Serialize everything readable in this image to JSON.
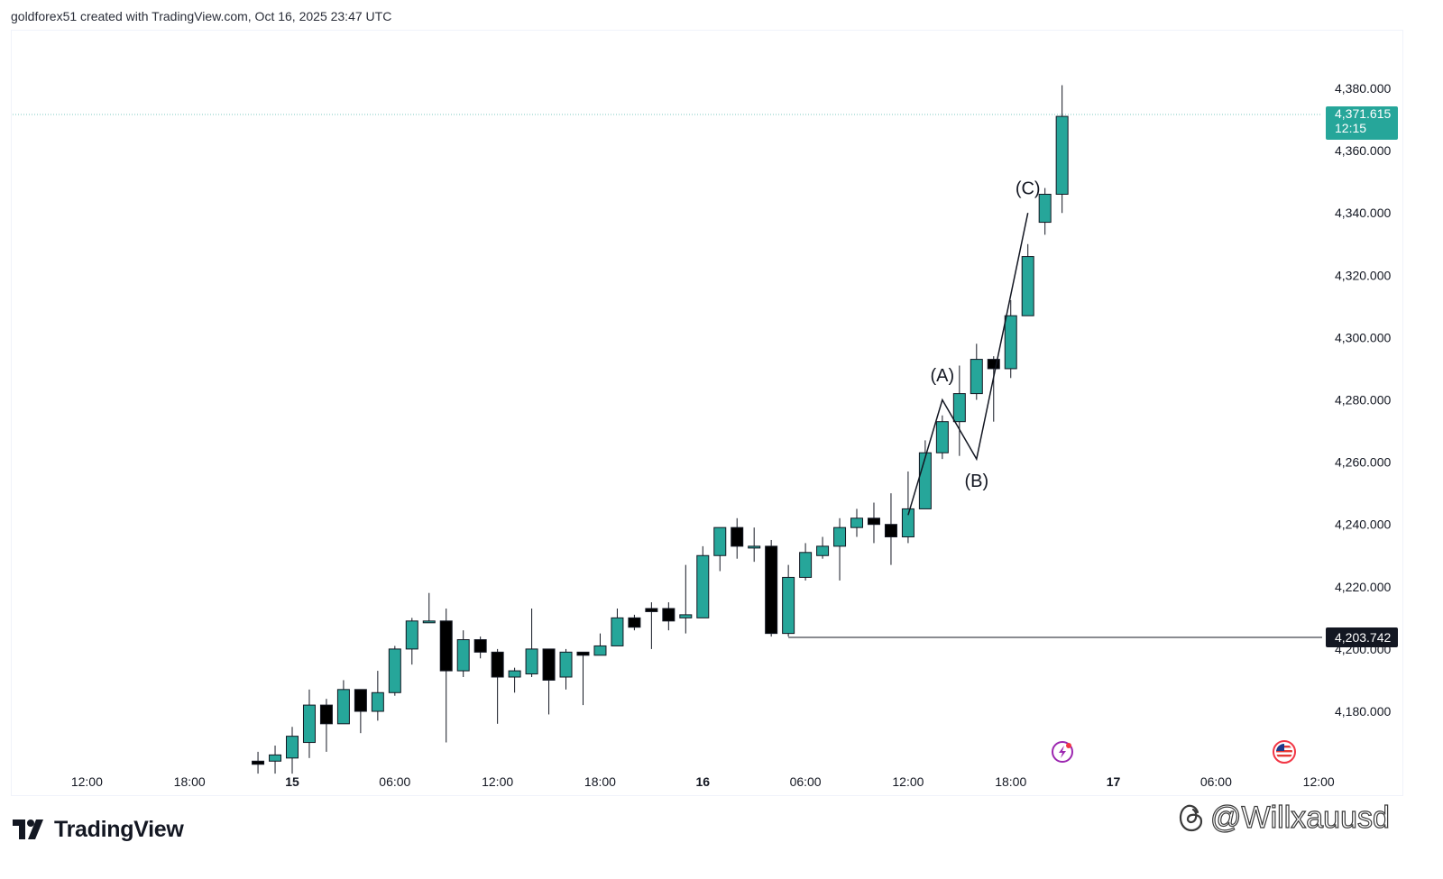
{
  "header": {
    "credit": "goldforex51 created with TradingView.com, Oct 16, 2025 23:47 UTC"
  },
  "footer": {
    "logo_text": "TradingView",
    "watermark": "@Willxauusd"
  },
  "icons": {
    "logo": "tradingview-logo-icon",
    "events": [
      "lightning-event-icon",
      "us-flag-event-icon"
    ],
    "watermark": "threads-icon"
  },
  "colors": {
    "up": "#26a69a",
    "down": "#000000",
    "price_line": "#26a69a",
    "level_line": "#131722"
  },
  "chart_data": {
    "type": "candlestick",
    "symbol_timeframe_minutes": 60,
    "y_axis": {
      "ticks": [
        4180,
        4200,
        4220,
        4240,
        4260,
        4280,
        4300,
        4320,
        4340,
        4360,
        4380
      ],
      "tick_labels": [
        "4,180.000",
        "4,200.000",
        "4,220.000",
        "4,240.000",
        "4,260.000",
        "4,280.000",
        "4,300.000",
        "4,320.000",
        "4,340.000",
        "4,360.000",
        "4,380.000"
      ]
    },
    "x_axis": {
      "ticks": [
        {
          "t": "2025-10-14 12:00",
          "label": "12:00",
          "bold": false
        },
        {
          "t": "2025-10-14 18:00",
          "label": "18:00",
          "bold": false
        },
        {
          "t": "2025-10-15 00:00",
          "label": "15",
          "bold": true
        },
        {
          "t": "2025-10-15 06:00",
          "label": "06:00",
          "bold": false
        },
        {
          "t": "2025-10-15 12:00",
          "label": "12:00",
          "bold": false
        },
        {
          "t": "2025-10-15 18:00",
          "label": "18:00",
          "bold": false
        },
        {
          "t": "2025-10-16 00:00",
          "label": "16",
          "bold": true
        },
        {
          "t": "2025-10-16 06:00",
          "label": "06:00",
          "bold": false
        },
        {
          "t": "2025-10-16 12:00",
          "label": "12:00",
          "bold": false
        },
        {
          "t": "2025-10-16 18:00",
          "label": "18:00",
          "bold": false
        },
        {
          "t": "2025-10-17 00:00",
          "label": "17",
          "bold": true
        },
        {
          "t": "2025-10-17 06:00",
          "label": "06:00",
          "bold": false
        },
        {
          "t": "2025-10-17 12:00",
          "label": "12:00",
          "bold": false
        }
      ]
    },
    "candles": [
      {
        "t": "2025-10-14 22:00",
        "o": 4164,
        "h": 4167,
        "l": 4160,
        "c": 4163
      },
      {
        "t": "2025-10-14 23:00",
        "o": 4164,
        "h": 4169,
        "l": 4160,
        "c": 4166
      },
      {
        "t": "2025-10-15 00:00",
        "o": 4165,
        "h": 4175,
        "l": 4160,
        "c": 4172
      },
      {
        "t": "2025-10-15 01:00",
        "o": 4170,
        "h": 4187,
        "l": 4165,
        "c": 4182
      },
      {
        "t": "2025-10-15 02:00",
        "o": 4182,
        "h": 4184,
        "l": 4167,
        "c": 4176
      },
      {
        "t": "2025-10-15 03:00",
        "o": 4176,
        "h": 4190,
        "l": 4176,
        "c": 4187
      },
      {
        "t": "2025-10-15 04:00",
        "o": 4187,
        "h": 4187,
        "l": 4173,
        "c": 4180
      },
      {
        "t": "2025-10-15 05:00",
        "o": 4180,
        "h": 4193,
        "l": 4177,
        "c": 4186
      },
      {
        "t": "2025-10-15 06:00",
        "o": 4186,
        "h": 4201,
        "l": 4185,
        "c": 4200
      },
      {
        "t": "2025-10-15 07:00",
        "o": 4200,
        "h": 4210,
        "l": 4195,
        "c": 4209
      },
      {
        "t": "2025-10-15 08:00",
        "o": 4209,
        "h": 4218,
        "l": 4209,
        "c": 4209
      },
      {
        "t": "2025-10-15 09:00",
        "o": 4209,
        "h": 4213,
        "l": 4170,
        "c": 4193
      },
      {
        "t": "2025-10-15 10:00",
        "o": 4193,
        "h": 4206,
        "l": 4191,
        "c": 4203
      },
      {
        "t": "2025-10-15 11:00",
        "o": 4203,
        "h": 4204,
        "l": 4197,
        "c": 4199
      },
      {
        "t": "2025-10-15 12:00",
        "o": 4199,
        "h": 4200,
        "l": 4176,
        "c": 4191
      },
      {
        "t": "2025-10-15 13:00",
        "o": 4191,
        "h": 4194,
        "l": 4186,
        "c": 4193
      },
      {
        "t": "2025-10-15 14:00",
        "o": 4192,
        "h": 4213,
        "l": 4191,
        "c": 4200
      },
      {
        "t": "2025-10-15 15:00",
        "o": 4200,
        "h": 4200,
        "l": 4179,
        "c": 4190
      },
      {
        "t": "2025-10-15 16:00",
        "o": 4191,
        "h": 4200,
        "l": 4187,
        "c": 4199
      },
      {
        "t": "2025-10-15 17:00",
        "o": 4199,
        "h": 4199,
        "l": 4182,
        "c": 4198
      },
      {
        "t": "2025-10-15 18:00",
        "o": 4198,
        "h": 4205,
        "l": 4198,
        "c": 4201
      },
      {
        "t": "2025-10-15 19:00",
        "o": 4201,
        "h": 4213,
        "l": 4201,
        "c": 4210
      },
      {
        "t": "2025-10-15 20:00",
        "o": 4210,
        "h": 4211,
        "l": 4206,
        "c": 4207
      },
      {
        "t": "2025-10-15 21:00",
        "o": 4213,
        "h": 4215,
        "l": 4200,
        "c": 4212
      },
      {
        "t": "2025-10-15 22:00",
        "o": 4213,
        "h": 4215,
        "l": 4206,
        "c": 4209
      },
      {
        "t": "2025-10-15 23:00",
        "o": 4210,
        "h": 4227,
        "l": 4205,
        "c": 4211
      },
      {
        "t": "2025-10-16 00:00",
        "o": 4210,
        "h": 4233,
        "l": 4210,
        "c": 4230
      },
      {
        "t": "2025-10-16 01:00",
        "o": 4230,
        "h": 4239,
        "l": 4225,
        "c": 4239
      },
      {
        "t": "2025-10-16 02:00",
        "o": 4239,
        "h": 4242,
        "l": 4229,
        "c": 4233
      },
      {
        "t": "2025-10-16 03:00",
        "o": 4233,
        "h": 4239,
        "l": 4228,
        "c": 4233
      },
      {
        "t": "2025-10-16 04:00",
        "o": 4233,
        "h": 4235,
        "l": 4204,
        "c": 4205
      },
      {
        "t": "2025-10-16 05:00",
        "o": 4205,
        "h": 4227,
        "l": 4204,
        "c": 4223
      },
      {
        "t": "2025-10-16 06:00",
        "o": 4223,
        "h": 4234,
        "l": 4222,
        "c": 4231
      },
      {
        "t": "2025-10-16 07:00",
        "o": 4230,
        "h": 4236,
        "l": 4229,
        "c": 4233
      },
      {
        "t": "2025-10-16 08:00",
        "o": 4233,
        "h": 4242,
        "l": 4222,
        "c": 4239
      },
      {
        "t": "2025-10-16 09:00",
        "o": 4239,
        "h": 4245,
        "l": 4236,
        "c": 4242
      },
      {
        "t": "2025-10-16 10:00",
        "o": 4242,
        "h": 4247,
        "l": 4234,
        "c": 4240
      },
      {
        "t": "2025-10-16 11:00",
        "o": 4240,
        "h": 4250,
        "l": 4227,
        "c": 4236
      },
      {
        "t": "2025-10-16 12:00",
        "o": 4236,
        "h": 4257,
        "l": 4234,
        "c": 4245
      },
      {
        "t": "2025-10-16 13:00",
        "o": 4245,
        "h": 4267,
        "l": 4245,
        "c": 4263
      },
      {
        "t": "2025-10-16 14:00",
        "o": 4263,
        "h": 4275,
        "l": 4261,
        "c": 4273
      },
      {
        "t": "2025-10-16 15:00",
        "o": 4273,
        "h": 4291,
        "l": 4262,
        "c": 4282
      },
      {
        "t": "2025-10-16 16:00",
        "o": 4282,
        "h": 4298,
        "l": 4280,
        "c": 4293
      },
      {
        "t": "2025-10-16 17:00",
        "o": 4293,
        "h": 4294,
        "l": 4273,
        "c": 4290
      },
      {
        "t": "2025-10-16 18:00",
        "o": 4290,
        "h": 4312,
        "l": 4287,
        "c": 4307
      },
      {
        "t": "2025-10-16 19:00",
        "o": 4307,
        "h": 4330,
        "l": 4307,
        "c": 4326
      },
      {
        "t": "2025-10-16 20:00",
        "o": 4337,
        "h": 4348,
        "l": 4333,
        "c": 4346
      },
      {
        "t": "2025-10-16 21:00",
        "o": 4346,
        "h": 4381,
        "l": 4340,
        "c": 4371
      }
    ],
    "current_price": {
      "value": 4371.615,
      "label": "4,371.615",
      "countdown": "12:15"
    },
    "horizontal_level": {
      "value": 4203.742,
      "label": "4,203.742",
      "from": "2025-10-16 05:00"
    },
    "wave_annotation": {
      "path": [
        {
          "t": "2025-10-16 12:00",
          "price": 4243
        },
        {
          "t": "2025-10-16 14:00",
          "price": 4280
        },
        {
          "t": "2025-10-16 16:00",
          "price": 4261
        },
        {
          "t": "2025-10-16 19:00",
          "price": 4340
        }
      ],
      "labels": [
        {
          "text": "(A)",
          "t": "2025-10-16 14:00",
          "price": 4286
        },
        {
          "text": "(B)",
          "t": "2025-10-16 16:00",
          "price": 4252
        },
        {
          "text": "(C)",
          "t": "2025-10-16 19:00",
          "price": 4346
        }
      ]
    }
  }
}
